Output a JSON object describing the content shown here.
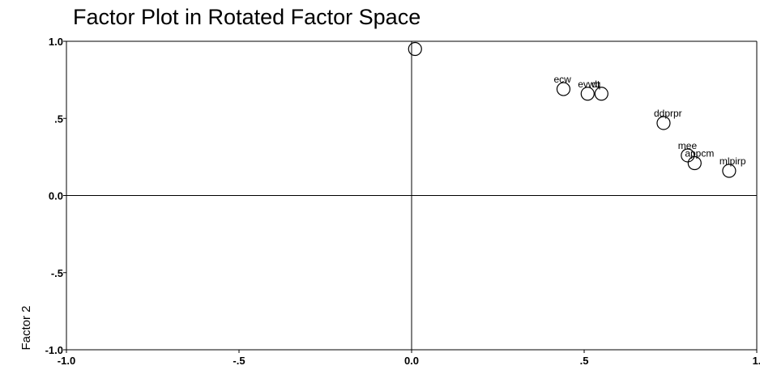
{
  "chart_data": {
    "type": "scatter",
    "title": "Factor Plot in Rotated Factor Space",
    "xlabel": "",
    "ylabel": "Factor 2",
    "xlim": [
      -1.0,
      1.0
    ],
    "ylim": [
      -1.0,
      1.0
    ],
    "x_tick_labels": [
      "-1.0",
      "-.5",
      "0.0",
      ".5",
      "1."
    ],
    "x_tick_values": [
      -1.0,
      -0.5,
      0.0,
      0.5,
      1.0
    ],
    "y_tick_labels": [
      "1.0",
      ".5",
      "0.0",
      "-.5",
      "-1.0"
    ],
    "y_tick_values": [
      1.0,
      0.5,
      0.0,
      -0.5,
      -1.0
    ],
    "grid": false,
    "reference_lines": {
      "x": 0.0,
      "y": 0.0
    },
    "points": [
      {
        "label": "",
        "x": 0.01,
        "y": 0.95
      },
      {
        "label": "ecw",
        "x": 0.44,
        "y": 0.69
      },
      {
        "label": "evwq",
        "x": 0.51,
        "y": 0.66
      },
      {
        "label": "dt",
        "x": 0.55,
        "y": 0.66
      },
      {
        "label": "ddprpr",
        "x": 0.73,
        "y": 0.47
      },
      {
        "label": "mee",
        "x": 0.8,
        "y": 0.26
      },
      {
        "label": "appcm",
        "x": 0.82,
        "y": 0.21
      },
      {
        "label": "mlpirp",
        "x": 0.92,
        "y": 0.16
      }
    ]
  }
}
